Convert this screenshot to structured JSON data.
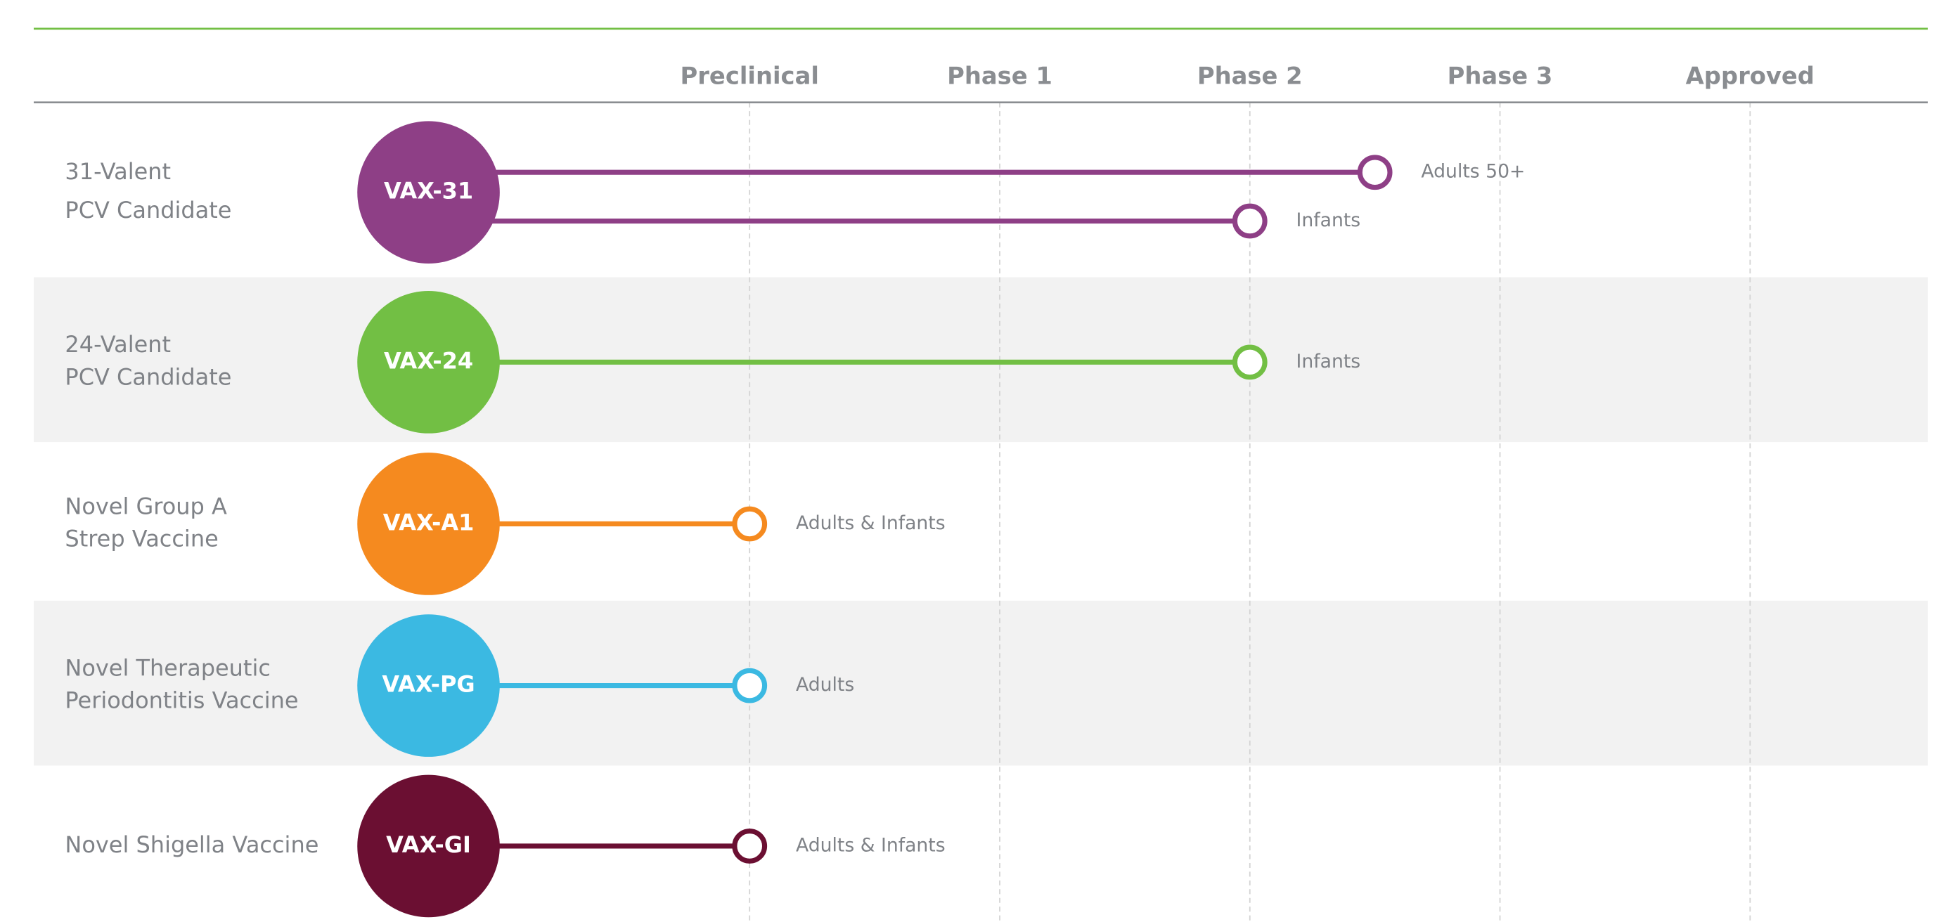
{
  "header": {
    "phases": [
      "Preclinical",
      "Phase 1",
      "Phase 2",
      "Phase 3",
      "Approved"
    ]
  },
  "programs": [
    {
      "name": [
        "31-Valent",
        "PCV Candidate"
      ],
      "code": "VAX-31",
      "color": "#8e3f86",
      "tracks": [
        {
          "population": "Adults 50+",
          "progress": 2.5
        },
        {
          "population": "Infants",
          "progress": 2
        }
      ]
    },
    {
      "name": [
        "24-Valent",
        "PCV Candidate"
      ],
      "code": "VAX-24",
      "color": "#72bf44",
      "tracks": [
        {
          "population": "Infants",
          "progress": 2
        }
      ]
    },
    {
      "name": [
        "Novel Group A",
        "Strep Vaccine"
      ],
      "code": "VAX-A1",
      "color": "#f58a1f",
      "tracks": [
        {
          "population": "Adults & Infants",
          "progress": 0
        }
      ]
    },
    {
      "name": [
        "Novel Therapeutic",
        "Periodontitis Vaccine"
      ],
      "code": "VAX-PG",
      "color": "#3bb9e2",
      "tracks": [
        {
          "population": "Adults",
          "progress": 0
        }
      ]
    },
    {
      "name": [
        "Novel Shigella Vaccine"
      ],
      "code": "VAX-GI",
      "color": "#6b0f32",
      "tracks": [
        {
          "population": "Adults & Infants",
          "progress": 0
        }
      ]
    }
  ]
}
